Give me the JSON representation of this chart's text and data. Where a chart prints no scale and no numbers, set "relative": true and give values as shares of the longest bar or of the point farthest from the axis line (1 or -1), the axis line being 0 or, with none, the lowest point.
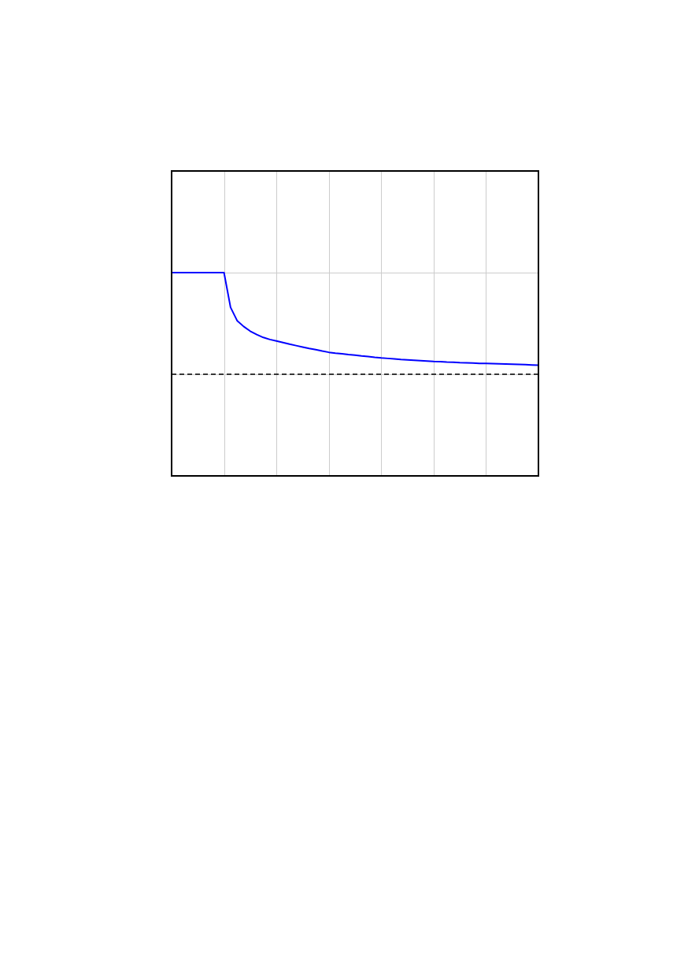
{
  "chart_data": {
    "type": "line",
    "relative": true,
    "grid": true,
    "tick_labels": false,
    "line_style": "solid",
    "categories": [
      null,
      null,
      null,
      null,
      null,
      null,
      null,
      null,
      null,
      null,
      null,
      null,
      null,
      null,
      null,
      null,
      null,
      null,
      null,
      null,
      null,
      null,
      null,
      null,
      null,
      null,
      null,
      null,
      null,
      null,
      null,
      null,
      null,
      null,
      null,
      null,
      null,
      null,
      null,
      null,
      null,
      null,
      null,
      null,
      null,
      null,
      null,
      null,
      null,
      null,
      null,
      null,
      null,
      null,
      null,
      null,
      null
    ],
    "series": [
      {
        "color": "#0000ff",
        "values": [
          1.0,
          1.0,
          1.0,
          1.0,
          1.0,
          1.0,
          1.0,
          1.0,
          1.0,
          0.829,
          0.764,
          0.735,
          0.712,
          0.695,
          0.681,
          0.671,
          0.664,
          0.656,
          0.648,
          0.641,
          0.634,
          0.627,
          0.621,
          0.614,
          0.608,
          0.604,
          0.601,
          0.597,
          0.594,
          0.59,
          0.587,
          0.583,
          0.58,
          0.578,
          0.576,
          0.573,
          0.571,
          0.569,
          0.567,
          0.565,
          0.563,
          0.562,
          0.56,
          0.559,
          0.557,
          0.556,
          0.555,
          0.553,
          0.553,
          0.552,
          0.551,
          0.55,
          0.549,
          0.548,
          0.547,
          0.546,
          0.545
        ]
      }
    ],
    "ref_lines": [
      {
        "axis": "y",
        "value": 0.5,
        "color": "#000000",
        "line_style": "dashed"
      }
    ]
  }
}
